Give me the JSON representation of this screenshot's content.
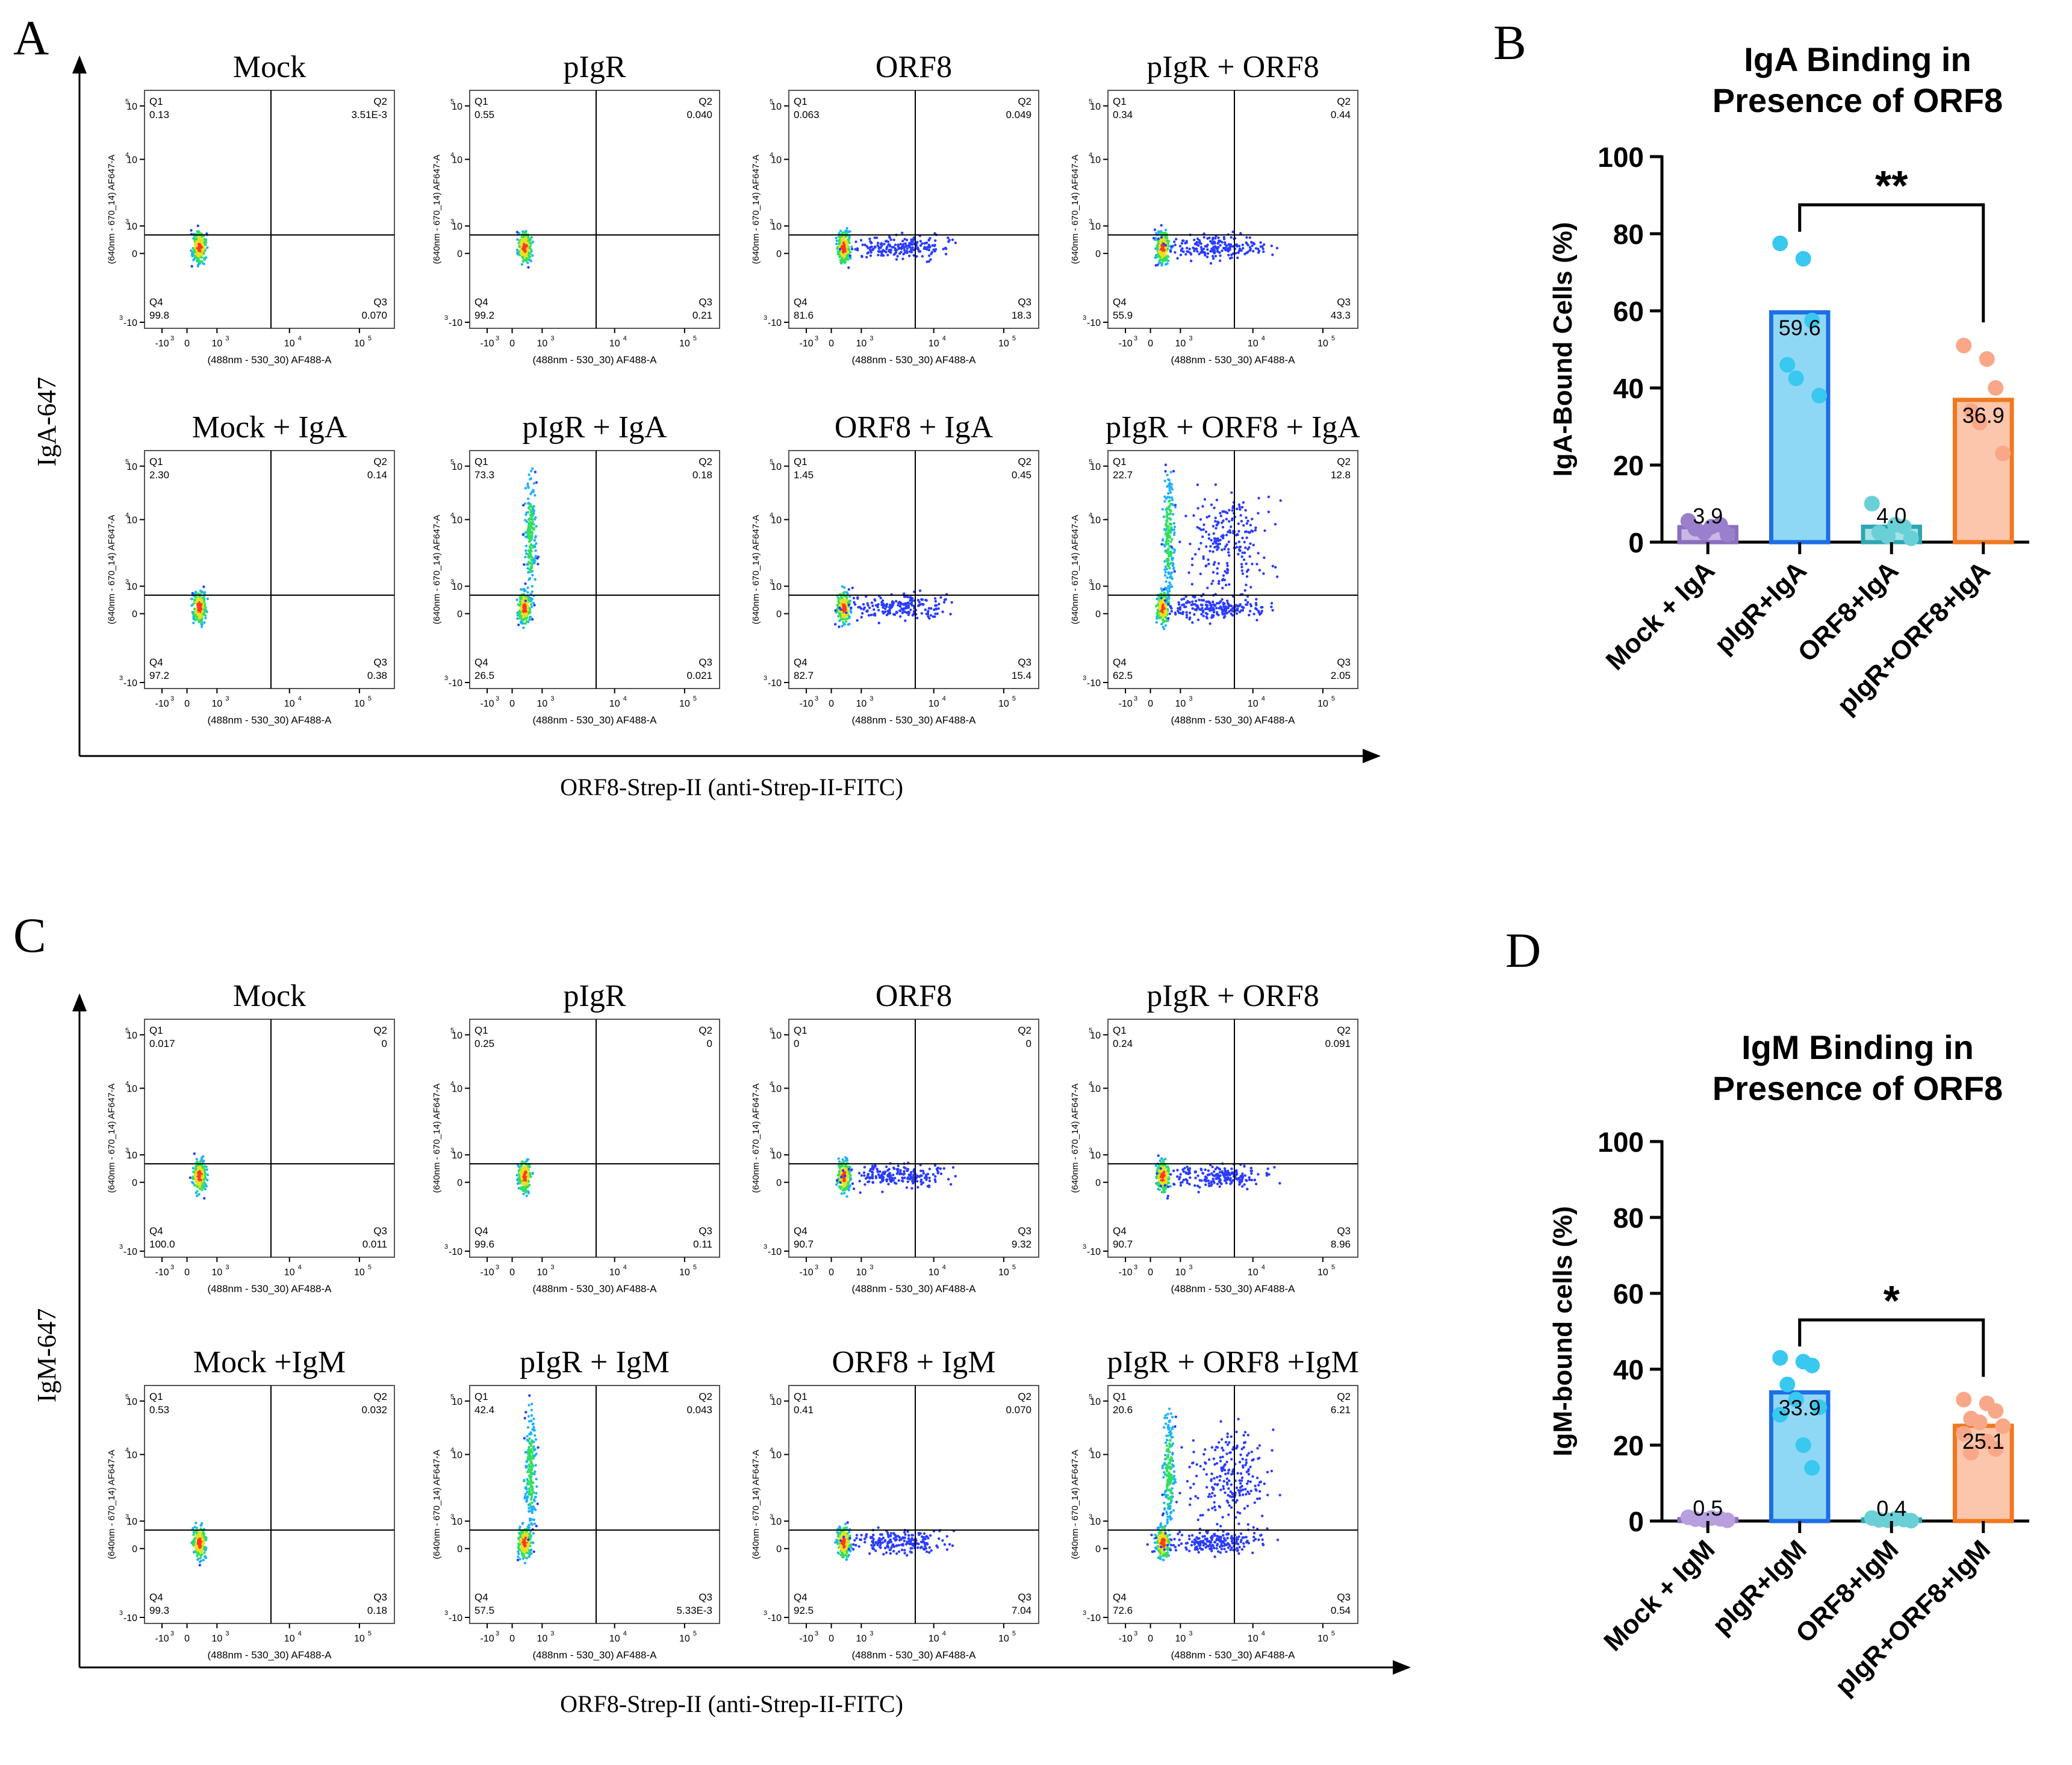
{
  "figure": {
    "panel_letters": [
      "A",
      "B",
      "C",
      "D"
    ],
    "top": {
      "ylabel": "IgA-647",
      "xlabel": "ORF8-Strep-II (anti-Strep-II-FITC)",
      "plot_xlabel": "(488nm - 530_30) AF488-A",
      "plot_ylabel": "(640nm - 670_14) AF647-A",
      "plots": [
        {
          "title": "Mock",
          "q1": "Q1",
          "q2": "Q2",
          "q3": "Q3",
          "q4": "Q4",
          "v1": "0.13",
          "v2": "3.51E-3",
          "v3": "0.070",
          "v4": "99.8"
        },
        {
          "title": "pIgR",
          "q1": "Q1",
          "q2": "Q2",
          "q3": "Q3",
          "q4": "Q4",
          "v1": "0.55",
          "v2": "0.040",
          "v3": "0.21",
          "v4": "99.2"
        },
        {
          "title": "ORF8",
          "q1": "Q1",
          "q2": "Q2",
          "q3": "Q3",
          "q4": "Q4",
          "v1": "0.063",
          "v2": "0.049",
          "v3": "18.3",
          "v4": "81.6"
        },
        {
          "title": "pIgR + ORF8",
          "q1": "Q1",
          "q2": "Q2",
          "q3": "Q3",
          "q4": "Q4",
          "v1": "0.34",
          "v2": "0.44",
          "v3": "43.3",
          "v4": "55.9"
        },
        {
          "title": "Mock + IgA",
          "q1": "Q1",
          "q2": "Q2",
          "q3": "Q3",
          "q4": "Q4",
          "v1": "2.30",
          "v2": "0.14",
          "v3": "0.38",
          "v4": "97.2"
        },
        {
          "title": "pIgR + IgA",
          "q1": "Q1",
          "q2": "Q2",
          "q3": "Q3",
          "q4": "Q4",
          "v1": "73.3",
          "v2": "0.18",
          "v3": "0.021",
          "v4": "26.5"
        },
        {
          "title": "ORF8 + IgA",
          "q1": "Q1",
          "q2": "Q2",
          "q3": "Q3",
          "q4": "Q4",
          "v1": "1.45",
          "v2": "0.45",
          "v3": "15.4",
          "v4": "82.7"
        },
        {
          "title": "pIgR + ORF8 + IgA",
          "q1": "Q1",
          "q2": "Q2",
          "q3": "Q3",
          "q4": "Q4",
          "v1": "22.7",
          "v2": "12.8",
          "v3": "2.05",
          "v4": "62.5"
        }
      ]
    },
    "bottom": {
      "ylabel": "IgM-647",
      "xlabel": "ORF8-Strep-II (anti-Strep-II-FITC)",
      "plot_xlabel": "(488nm - 530_30) AF488-A",
      "plot_ylabel": "(640nm - 670_14) AF647-A",
      "plots": [
        {
          "title": "Mock",
          "q1": "Q1",
          "q2": "Q2",
          "q3": "Q3",
          "q4": "Q4",
          "v1": "0.017",
          "v2": "0",
          "v3": "0.011",
          "v4": "100.0"
        },
        {
          "title": "pIgR",
          "q1": "Q1",
          "q2": "Q2",
          "q3": "Q3",
          "q4": "Q4",
          "v1": "0.25",
          "v2": "0",
          "v3": "0.11",
          "v4": "99.6"
        },
        {
          "title": "ORF8",
          "q1": "Q1",
          "q2": "Q2",
          "q3": "Q3",
          "q4": "Q4",
          "v1": "0",
          "v2": "0",
          "v3": "9.32",
          "v4": "90.7"
        },
        {
          "title": "pIgR + ORF8",
          "q1": "Q1",
          "q2": "Q2",
          "q3": "Q3",
          "q4": "Q4",
          "v1": "0.24",
          "v2": "0.091",
          "v3": "8.96",
          "v4": "90.7"
        },
        {
          "title": "Mock +IgM",
          "q1": "Q1",
          "q2": "Q2",
          "q3": "Q3",
          "q4": "Q4",
          "v1": "0.53",
          "v2": "0.032",
          "v3": "0.18",
          "v4": "99.3"
        },
        {
          "title": "pIgR + IgM",
          "q1": "Q1",
          "q2": "Q2",
          "q3": "Q3",
          "q4": "Q4",
          "v1": "42.4",
          "v2": "0.043",
          "v3": "5.33E-3",
          "v4": "57.5"
        },
        {
          "title": "ORF8 + IgM",
          "q1": "Q1",
          "q2": "Q2",
          "q3": "Q3",
          "q4": "Q4",
          "v1": "0.41",
          "v2": "0.070",
          "v3": "7.04",
          "v4": "92.5"
        },
        {
          "title": "pIgR + ORF8 +IgM",
          "q1": "Q1",
          "q2": "Q2",
          "q3": "Q3",
          "q4": "Q4",
          "v1": "20.6",
          "v2": "6.21",
          "v3": "0.54",
          "v4": "72.6"
        }
      ]
    },
    "tick_labels": {
      "neg": "-10",
      "zero": "0",
      "e3": "10",
      "e4": "10",
      "e5": "10",
      "exp_neg": "3",
      "exp3": "3",
      "exp4": "4",
      "exp5": "5"
    }
  },
  "chart_data": [
    {
      "type": "bar",
      "title_lines": [
        "IgA Binding in",
        "Presence of ORF8"
      ],
      "ylabel": "IgA-Bound Cells (%)",
      "ylim": [
        0,
        100
      ],
      "yticks": [
        0,
        20,
        40,
        60,
        80,
        100
      ],
      "categories": [
        "Mock + IgA",
        "pIgR+IgA",
        "ORF8+IgA",
        "pIgR+ORF8+IgA"
      ],
      "values": [
        3.9,
        59.6,
        4.0,
        36.9
      ],
      "value_labels": [
        "3.9",
        "59.6",
        "4.0",
        "36.9"
      ],
      "points": [
        [
          5.5,
          4.0,
          4.5,
          3.5,
          2.5,
          2.0
        ],
        [
          77.5,
          73.5,
          57.5,
          46.0,
          42.5,
          38.0
        ],
        [
          10.0,
          4.5,
          4.0,
          2.5,
          1.5,
          1.0
        ],
        [
          51.0,
          47.5,
          40.0,
          34.0,
          31.0,
          23.0
        ]
      ],
      "colors": [
        "#8b6fc0",
        "#1e6ee6",
        "#2fa7b3",
        "#f07820"
      ],
      "fills": [
        "#c9b8e6",
        "#8fd8f5",
        "#a7e2e6",
        "#fbc6ac"
      ],
      "point_colors": [
        "#9a80cc",
        "#38c8f0",
        "#6ad0d8",
        "#f8a888"
      ],
      "significance": {
        "from": 1,
        "to": 3,
        "label": "**"
      }
    },
    {
      "type": "bar",
      "title_lines": [
        "IgM Binding in",
        "Presence of ORF8"
      ],
      "ylabel": "IgM-bound cells (%)",
      "ylim": [
        0,
        100
      ],
      "yticks": [
        0,
        20,
        40,
        60,
        80,
        100
      ],
      "categories": [
        "Mock + IgM",
        "pIgR+IgM",
        "ORF8+IgM",
        "pIgR+ORF8+IgM"
      ],
      "values": [
        0.5,
        33.9,
        0.4,
        25.1
      ],
      "value_labels": [
        "0.5",
        "33.9",
        "0.4",
        "25.1"
      ],
      "points": [
        [
          1.0,
          0.8,
          0.6,
          0.5,
          0.3,
          0.2
        ],
        [
          43.0,
          42.0,
          41.0,
          36.0,
          32.0,
          30.0,
          28.0,
          20.0,
          14.0
        ],
        [
          0.8,
          0.6,
          0.4,
          0.3,
          0.2,
          0.1
        ],
        [
          32.0,
          31.0,
          29.0,
          27.0,
          26.0,
          25.0,
          23.0,
          21.0,
          19.0,
          18.0
        ]
      ],
      "colors": [
        "#8b6fc0",
        "#1e6ee6",
        "#2fa7b3",
        "#f07820"
      ],
      "fills": [
        "#c9b8e6",
        "#8fd8f5",
        "#a7e2e6",
        "#fbc6ac"
      ],
      "point_colors": [
        "#b7a0dd",
        "#38c8f0",
        "#6ad0d8",
        "#f8a888"
      ],
      "significance": {
        "from": 1,
        "to": 3,
        "label": "*"
      }
    }
  ]
}
